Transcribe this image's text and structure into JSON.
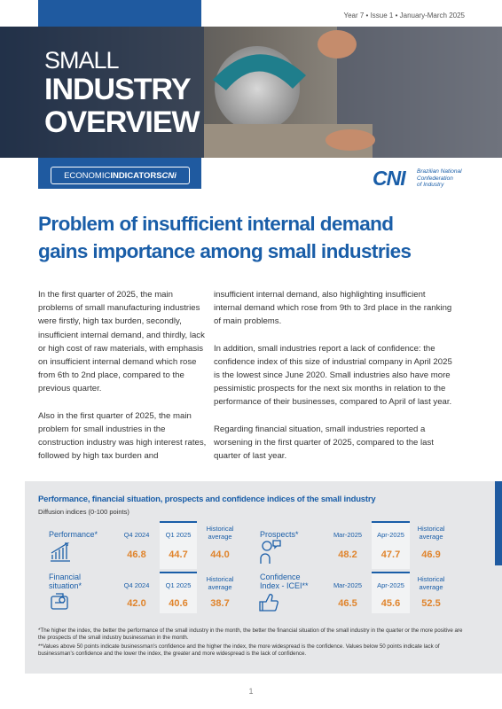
{
  "header": {
    "issue": "Year 7 • Issue 1 • January-March 2025",
    "title_lines": [
      "SMALL",
      "INDUSTRY",
      "OVERVIEW"
    ],
    "series": [
      "ECONOMIC",
      "INDICATORS",
      "CNi"
    ],
    "logo": {
      "mark": "CNI",
      "name_lines": [
        "Brazilian National",
        "Confederation",
        "of Industry"
      ]
    }
  },
  "headline": [
    "Problem of insufficient internal demand",
    "gains importance among small industries"
  ],
  "body": {
    "columns": [
      [
        "In the first quarter of 2025, the main problems of small manufacturing industries were firstly, high tax burden, secondly, insufficient internal demand, and thirdly, lack or high cost of raw materials, with emphasis on insufficient internal demand which rose from 6th to 2nd place, compared to the previous quarter.",
        "Also in the first quarter of 2025, the main problem for small industries in the construction industry was high interest rates, followed by high tax burden and"
      ],
      [
        "insufficient internal demand, also highlighting insufficient internal demand which rose from 9th to 3rd place in the ranking of main problems.",
        "In addition, small industries report a lack of confidence: the confidence index of this size of industrial company in April 2025 is the lowest since June 2020. Small industries also have more pessimistic prospects for the next six months in relation to the performance of their businesses, compared to April of last year.",
        "Regarding financial situation, small industries reported a worsening in the first quarter of 2025, compared to the last quarter of last year."
      ]
    ]
  },
  "indicators": {
    "title": "Performance, financial situation, prospects and confidence indices of the small industry",
    "subtitle": "Diffusion indices (0-100 points)",
    "items": [
      {
        "label": "Performance*",
        "periods": [
          "Q4 2024",
          "Q1 2025",
          "Historical average"
        ],
        "values": [
          "46.8",
          "44.7",
          "44.0"
        ]
      },
      {
        "label": "Financial situation*",
        "periods": [
          "Q4 2024",
          "Q1 2025",
          "Historical average"
        ],
        "values": [
          "42.0",
          "40.6",
          "38.7"
        ]
      },
      {
        "label": "Prospects*",
        "periods": [
          "Mar-2025",
          "Apr-2025",
          "Historical average"
        ],
        "values": [
          "48.2",
          "47.7",
          "46.9"
        ]
      },
      {
        "label": "Confidence Index - ICEI**",
        "periods": [
          "Mar-2025",
          "Apr-2025",
          "Historical average"
        ],
        "values": [
          "46.5",
          "45.6",
          "52.5"
        ]
      }
    ],
    "footnotes": [
      "*The higher the index, the better the performance of the small industry in the month, the better the financial situation of the small industry in the quarter or the more positive are the prospects of the small industry businessman in the month.",
      "**Values above 50 points indicate businessman's confidence and the higher the index, the more widespread is the confidence. Values below 50 points indicate lack of businessman's confidence and the lower the index, the greater and more widespread is the lack of confidence."
    ]
  },
  "page_number": "1"
}
